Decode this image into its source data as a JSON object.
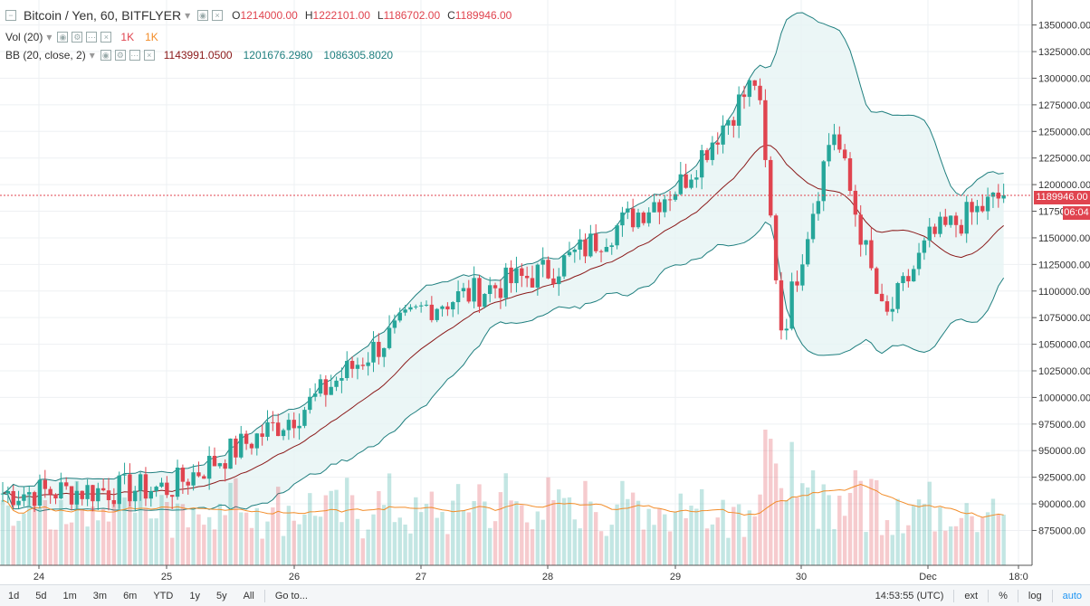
{
  "header": {
    "symbol_title": "Bitcoin / Yen, 60, BITFLYER",
    "open_label": "O",
    "open": "1214000.00",
    "high_label": "H",
    "high": "1222101.00",
    "low_label": "L",
    "low": "1186702.00",
    "close_label": "C",
    "close": "1189946.00"
  },
  "vol_legend": {
    "label": "Vol (20)",
    "v1": "1K",
    "v2": "1K"
  },
  "bb_legend": {
    "label": "BB (20, close, 2)",
    "middle": "1143991.0500",
    "upper": "1201676.2980",
    "lower": "1086305.8020"
  },
  "colors": {
    "up": "#26a69a",
    "down": "#e0444f",
    "basis": "#8b1a1a",
    "band": "#1f7f7f",
    "band_fill": "#e6f4f4",
    "vol_ma": "#f28c28"
  },
  "price_tag": {
    "value": "1189946.00",
    "countdown": "06:04"
  },
  "bottom_bar": {
    "timeframes": [
      "1d",
      "5d",
      "1m",
      "3m",
      "6m",
      "YTD",
      "1y",
      "5y",
      "All"
    ],
    "goto": "Go to...",
    "clock": "14:53:55 (UTC)",
    "ext": "ext",
    "percent": "%",
    "log": "log",
    "auto": "auto"
  },
  "chart_data": {
    "type": "candlestick",
    "title": "Bitcoin / Yen, 60, BITFLYER",
    "y_ticks": [
      "1350000.00",
      "1325000.00",
      "1300000.00",
      "1275000.00",
      "1250000.00",
      "1225000.00",
      "1200000.00",
      "1175000.00",
      "1150000.00",
      "1125000.00",
      "1100000.00",
      "1075000.00",
      "1050000.00",
      "1025000.00",
      "1000000.00",
      "975000.00",
      "950000.00",
      "925000.00",
      "900000.00",
      "875000.00"
    ],
    "ylim": [
      855000,
      1365000
    ],
    "x_ticks": [
      "24",
      "25",
      "26",
      "27",
      "28",
      "29",
      "30",
      "Dec",
      "18:0"
    ],
    "key_prices": [
      {
        "day": "24",
        "price": 910000
      },
      {
        "day": "25",
        "price": 915000
      },
      {
        "day": "26",
        "price": 985000
      },
      {
        "day": "27",
        "price": 1085000
      },
      {
        "day": "28",
        "price": 1120000
      },
      {
        "day": "29",
        "price": 1200000
      },
      {
        "day": "29.6",
        "price": 1300000
      },
      {
        "day": "29.8",
        "price": 1060000
      },
      {
        "day": "30.2",
        "price": 1255000
      },
      {
        "day": "30.6",
        "price": 1070000
      },
      {
        "day": "Dec",
        "price": 1150000
      },
      {
        "day": "Dec 18:00",
        "price": 1189946
      }
    ],
    "last_price": 1189946,
    "bollinger": {
      "period": 20,
      "source": "close",
      "mult": 2,
      "basis": 1143991.05,
      "upper": 1201676.298,
      "lower": 1086305.802
    },
    "volume_indicator": {
      "length": 20
    }
  }
}
